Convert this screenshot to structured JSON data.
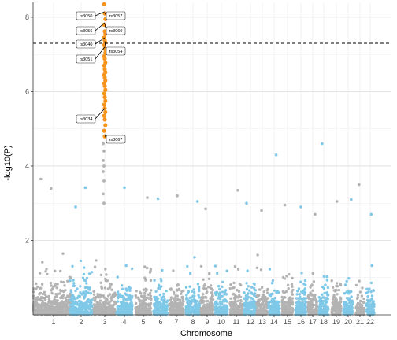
{
  "chart_data": {
    "type": "scatter",
    "xlabel": "Chromosome",
    "ylabel": "-log10(P)",
    "ylim": [
      0,
      8.4
    ],
    "y_ticks": [
      "2",
      "4",
      "6",
      "8"
    ],
    "y_tick_values": [
      2,
      4,
      6,
      8
    ],
    "grid": true,
    "significance_threshold": 7.3,
    "chromosomes": [
      "1",
      "2",
      "3",
      "4",
      "5",
      "6",
      "7",
      "8",
      "9",
      "10",
      "11",
      "12",
      "13",
      "14",
      "15",
      "16",
      "17",
      "18",
      "19",
      "20",
      "21",
      "22"
    ],
    "colors": {
      "odd": "#b3b3b3",
      "even": "#7fc8e8",
      "highlight": "#f7941d",
      "threshold": "#000000"
    },
    "peak_points": [
      {
        "chrom": "3",
        "values": [
          8.35,
          8.1,
          7.95,
          7.8,
          7.62,
          7.55,
          7.45,
          7.38,
          7.32,
          7.25,
          7.15,
          7.05,
          6.95,
          6.88,
          6.78,
          6.7,
          6.6,
          6.52,
          6.45,
          6.38,
          6.3,
          6.22,
          6.15,
          6.05,
          5.95,
          5.85,
          5.75,
          5.65,
          5.55,
          5.45,
          5.35,
          5.25,
          5.1,
          4.95,
          4.8
        ]
      },
      {
        "chrom": "3",
        "values": [
          4.6,
          4.4,
          4.15,
          4.0,
          3.85,
          3.6,
          3.25,
          3.0
        ]
      }
    ],
    "top_points": [
      {
        "chrom": "1",
        "value": 3.65
      },
      {
        "chrom": "1",
        "value": 3.4
      },
      {
        "chrom": "2",
        "value": 3.42
      },
      {
        "chrom": "2",
        "value": 2.9
      },
      {
        "chrom": "4",
        "value": 3.42
      },
      {
        "chrom": "5",
        "value": 3.15
      },
      {
        "chrom": "6",
        "value": 3.12
      },
      {
        "chrom": "7",
        "value": 3.2
      },
      {
        "chrom": "8",
        "value": 3.05
      },
      {
        "chrom": "9",
        "value": 2.85
      },
      {
        "chrom": "11",
        "value": 3.35
      },
      {
        "chrom": "12",
        "value": 3.0
      },
      {
        "chrom": "13",
        "value": 2.8
      },
      {
        "chrom": "14",
        "value": 4.3
      },
      {
        "chrom": "15",
        "value": 2.95
      },
      {
        "chrom": "16",
        "value": 2.9
      },
      {
        "chrom": "17",
        "value": 2.7
      },
      {
        "chrom": "18",
        "value": 4.6
      },
      {
        "chrom": "19",
        "value": 3.05
      },
      {
        "chrom": "20",
        "value": 3.1
      },
      {
        "chrom": "21",
        "value": 3.5
      },
      {
        "chrom": "22",
        "value": 2.7
      }
    ],
    "annotations": [
      {
        "label": "rs3050",
        "value": 8.15,
        "side": "left"
      },
      {
        "label": "rs3057",
        "value": 8.12,
        "side": "right"
      },
      {
        "label": "rs3056",
        "value": 7.85,
        "side": "left"
      },
      {
        "label": "rs3060",
        "value": 7.82,
        "side": "right"
      },
      {
        "label": "rs3040",
        "value": 7.45,
        "side": "left"
      },
      {
        "label": "rs3054",
        "value": 7.35,
        "side": "right"
      },
      {
        "label": "rs3051",
        "value": 7.2,
        "side": "left"
      },
      {
        "label": "rs3034",
        "value": 5.55,
        "side": "left"
      },
      {
        "label": "rs3067",
        "value": 4.85,
        "side": "right"
      }
    ]
  }
}
